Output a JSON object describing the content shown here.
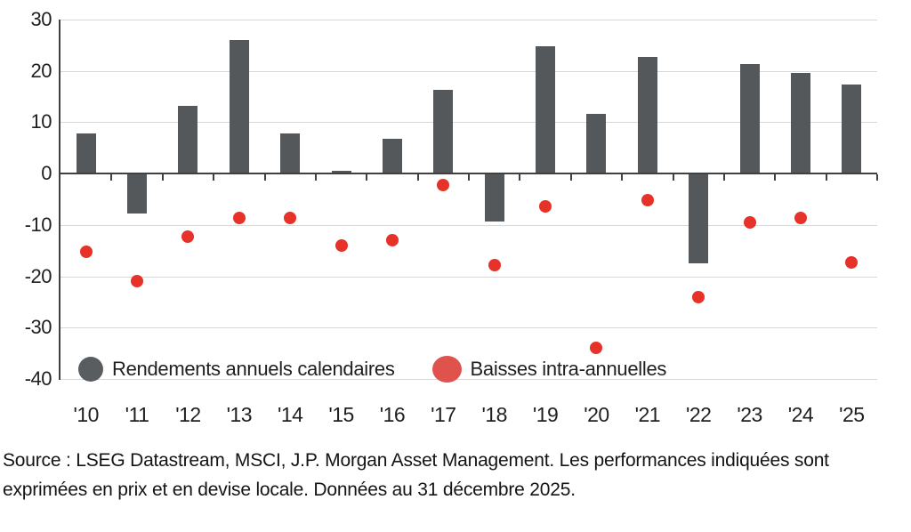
{
  "chart_data": {
    "type": "bar",
    "subtype": "bar-with-scatter-overlay",
    "categories": [
      "'10",
      "'11",
      "'12",
      "'13",
      "'14",
      "'15",
      "'16",
      "'17",
      "'18",
      "'19",
      "'20",
      "'21",
      "'22",
      "'23",
      "'24",
      "'25"
    ],
    "series": [
      {
        "name": "Rendements annuels calendaires",
        "mark": "bar",
        "color": "#54585a",
        "values": [
          7.8,
          -7.8,
          13.2,
          26.1,
          7.8,
          0.5,
          6.8,
          16.3,
          -9.3,
          24.8,
          11.6,
          22.8,
          -17.5,
          21.3,
          19.6,
          17.3
        ]
      },
      {
        "name": "Baisses intra-annuelles",
        "mark": "scatter",
        "color": "#e63228",
        "values": [
          -15.2,
          -20.9,
          -12.2,
          -8.6,
          -8.6,
          -14.0,
          -13.0,
          -2.2,
          -17.8,
          -6.4,
          -34.0,
          -5.1,
          -24.0,
          -9.5,
          -8.6,
          -17.3
        ]
      }
    ],
    "title": "",
    "xlabel": "",
    "ylabel": "",
    "ylim": [
      -40,
      30
    ],
    "yticks": [
      30,
      20,
      10,
      0,
      -10,
      -20,
      -30,
      -40
    ],
    "grid": true,
    "legend_position": "bottom-inside"
  },
  "legend": {
    "bar_label": "Rendements annuels calendaires",
    "dot_label": "Baisses intra-annuelles"
  },
  "source": {
    "line1": "Source : LSEG Datastream, MSCI, J.P. Morgan Asset Management. Les performances indiquées sont",
    "line2": "exprimées en prix et en devise locale. Données au 31 décembre 2025."
  },
  "colors": {
    "bar": "#54585a",
    "dot": "#e63228",
    "legend_dot": "#e0524c",
    "legend_bar": "#595d60",
    "grid": "#d8d8d8",
    "axis": "#404040",
    "text": "#1f1f1f"
  }
}
